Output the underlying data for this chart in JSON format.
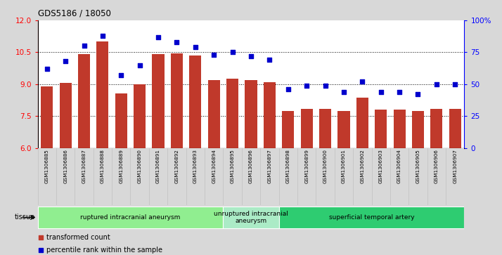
{
  "title": "GDS5186 / 18050",
  "samples": [
    "GSM1306885",
    "GSM1306886",
    "GSM1306887",
    "GSM1306888",
    "GSM1306889",
    "GSM1306890",
    "GSM1306891",
    "GSM1306892",
    "GSM1306893",
    "GSM1306894",
    "GSM1306895",
    "GSM1306896",
    "GSM1306897",
    "GSM1306898",
    "GSM1306899",
    "GSM1306900",
    "GSM1306901",
    "GSM1306902",
    "GSM1306903",
    "GSM1306904",
    "GSM1306905",
    "GSM1306906",
    "GSM1306907"
  ],
  "bar_values": [
    8.9,
    9.05,
    10.4,
    11.0,
    8.55,
    9.0,
    10.4,
    10.45,
    10.35,
    9.2,
    9.25,
    9.2,
    9.1,
    7.75,
    7.85,
    7.85,
    7.75,
    8.35,
    7.8,
    7.8,
    7.75,
    7.85,
    7.85
  ],
  "percentile_values": [
    62,
    68,
    80,
    88,
    57,
    65,
    87,
    83,
    79,
    73,
    75,
    72,
    69,
    46,
    49,
    49,
    44,
    52,
    44,
    44,
    42,
    50,
    50
  ],
  "bar_color": "#C0392B",
  "dot_color": "#0000CC",
  "ylim_left": [
    6,
    12
  ],
  "ylim_right": [
    0,
    100
  ],
  "yticks_left": [
    6,
    7.5,
    9,
    10.5,
    12
  ],
  "yticks_right": [
    0,
    25,
    50,
    75,
    100
  ],
  "ytick_labels_right": [
    "0",
    "25",
    "50",
    "75",
    "100%"
  ],
  "grid_values": [
    7.5,
    9.0,
    10.5
  ],
  "groups": [
    {
      "label": "ruptured intracranial aneurysm",
      "start": 0,
      "end": 10,
      "color": "#90EE90"
    },
    {
      "label": "unruptured intracranial\naneurysm",
      "start": 10,
      "end": 13,
      "color": "#ABEBC6"
    },
    {
      "label": "superficial temporal artery",
      "start": 13,
      "end": 23,
      "color": "#2ECC71"
    }
  ],
  "tissue_label": "tissue",
  "legend_bar_label": "transformed count",
  "legend_dot_label": "percentile rank within the sample",
  "background_color": "#D8D8D8",
  "plot_bg_color": "#FFFFFF"
}
